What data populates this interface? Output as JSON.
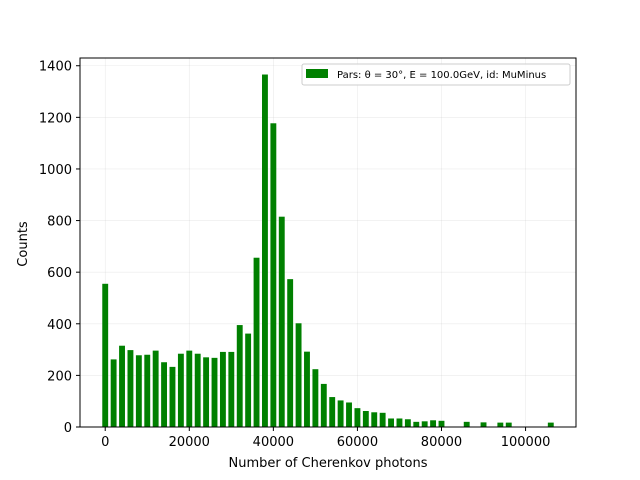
{
  "chart_data": {
    "type": "bar",
    "xlabel": "Number of Cherenkov photons",
    "ylabel": "Counts",
    "xlim": [
      -6000,
      112000
    ],
    "ylim": [
      0,
      1430
    ],
    "xticks": [
      0,
      20000,
      40000,
      60000,
      80000,
      100000
    ],
    "xtick_labels": [
      "0",
      "20000",
      "40000",
      "60000",
      "80000",
      "100000"
    ],
    "yticks": [
      0,
      200,
      400,
      600,
      800,
      1000,
      1200,
      1400
    ],
    "ytick_labels": [
      "0",
      "200",
      "400",
      "600",
      "800",
      "1000",
      "1200",
      "1400"
    ],
    "bin_width": 2000,
    "bar_fraction": 0.7,
    "grid": true,
    "legend_position": "top-right",
    "bar_color": "#008000",
    "series": [
      {
        "legend_text": "Pars: θ = 30°, E = 100.0GeV, id: MuMinus",
        "x": [
          0,
          2000,
          4000,
          6000,
          8000,
          10000,
          12000,
          14000,
          16000,
          18000,
          20000,
          22000,
          24000,
          26000,
          28000,
          30000,
          32000,
          34000,
          36000,
          38000,
          40000,
          42000,
          44000,
          46000,
          48000,
          50000,
          52000,
          54000,
          56000,
          58000,
          60000,
          62000,
          64000,
          66000,
          68000,
          70000,
          72000,
          74000,
          76000,
          78000,
          80000,
          86000,
          90000,
          94000,
          96000,
          106000
        ],
        "values": [
          555,
          262,
          315,
          298,
          278,
          280,
          296,
          251,
          233,
          284,
          296,
          284,
          270,
          268,
          291,
          291,
          395,
          362,
          656,
          1366,
          1177,
          815,
          573,
          402,
          292,
          224,
          167,
          116,
          103,
          95,
          73,
          62,
          57,
          55,
          33,
          33,
          30,
          20,
          22,
          26,
          24,
          20,
          18,
          17,
          17,
          17
        ]
      }
    ]
  }
}
